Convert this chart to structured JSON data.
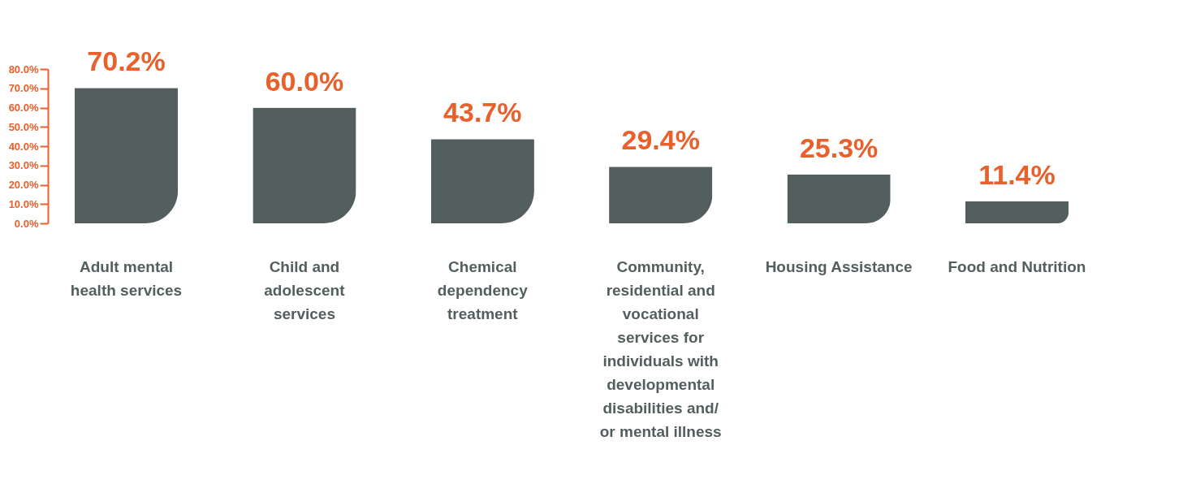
{
  "chart_data": {
    "type": "bar",
    "categories": [
      "Adult mental health services",
      "Child and adolescent services",
      "Chemical dependency treatment",
      "Community, residential and vocational services for individuals with developmental disabilities and/ or mental illness",
      "Housing Assistance",
      "Food and Nutrition"
    ],
    "values": [
      70.2,
      60.0,
      43.7,
      29.4,
      25.3,
      11.4
    ],
    "value_labels": [
      "70.2%",
      "60.0%",
      "43.7%",
      "29.4%",
      "25.3%",
      "11.4%"
    ],
    "color": "#535e5e",
    "ylim": [
      0,
      80
    ],
    "yticks": [
      {
        "value": 0,
        "label": "0.0%"
      },
      {
        "value": 10,
        "label": "10.0%"
      },
      {
        "value": 20,
        "label": "20.0%"
      },
      {
        "value": 30,
        "label": "30.0%"
      },
      {
        "value": 40,
        "label": "40.0%"
      },
      {
        "value": 50,
        "label": "50.0%"
      },
      {
        "value": 60,
        "label": "60.0%"
      },
      {
        "value": 70,
        "label": "70.0%"
      },
      {
        "value": 80,
        "label": "80.0%"
      }
    ],
    "grid": false
  }
}
